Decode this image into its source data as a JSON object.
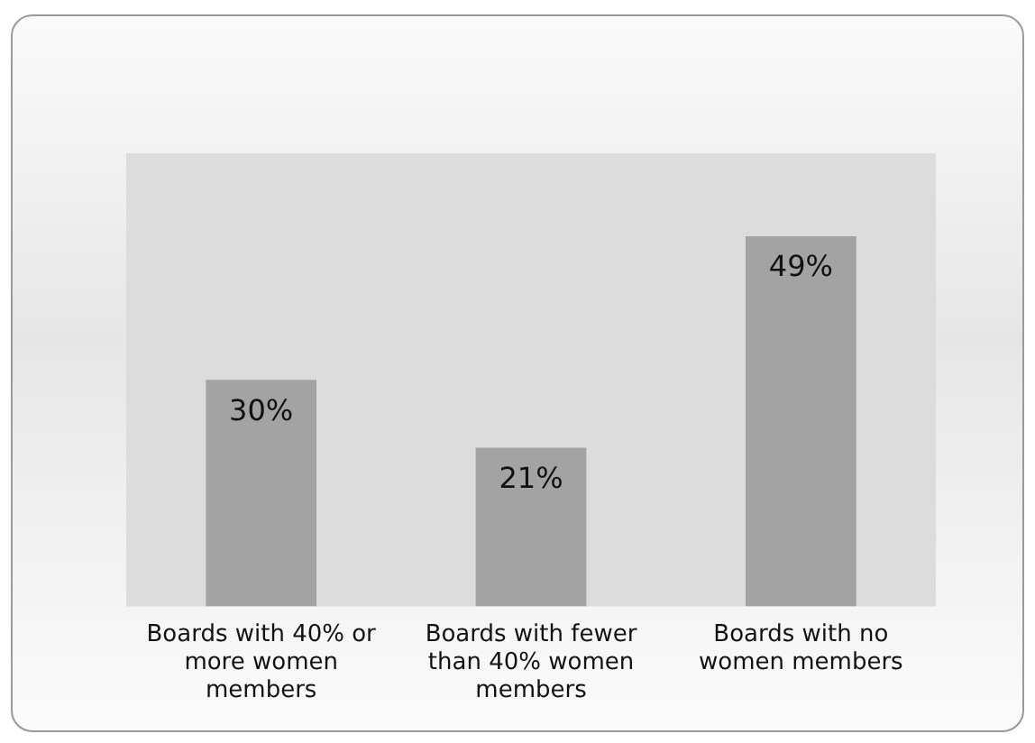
{
  "chart_data": {
    "type": "bar",
    "categories": [
      "Boards with 40% or more women members",
      "Boards with fewer than 40% women members",
      "Boards with no women members"
    ],
    "values": [
      30,
      21,
      49
    ],
    "value_labels": [
      "30%",
      "21%",
      "49%"
    ],
    "color": "#a3a3a3",
    "grid": false,
    "legend": false
  }
}
